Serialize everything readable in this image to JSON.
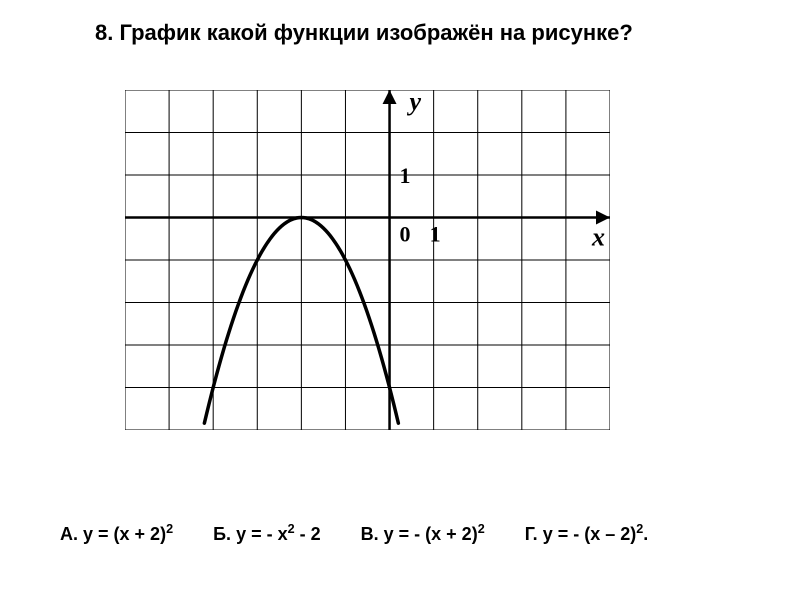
{
  "question": {
    "number": "8.",
    "text": "График какой функции изображён на рисунке?"
  },
  "chart": {
    "type": "line",
    "background_color": "#ffffff",
    "grid_color": "#000000",
    "axis_color": "#000000",
    "curve_color": "#000000",
    "axis_line_width": 2.5,
    "curve_line_width": 3.5,
    "grid_line_width": 1,
    "x_range": [
      -6,
      5
    ],
    "y_range": [
      -5,
      3
    ],
    "grid_step": 1,
    "x_label": "x",
    "y_label": "y",
    "label_fontsize": 26,
    "tick_label_fontsize": 22,
    "origin_label": "0",
    "unit_label": "1",
    "parabola": {
      "vertex": [
        -2,
        0
      ],
      "coefficient": -1,
      "x_min": -4.2,
      "x_max": 0.2
    }
  },
  "answers": {
    "a": {
      "prefix": "А.",
      "formula": "y = (x + 2)",
      "exponent": "2"
    },
    "b": {
      "prefix": "Б.",
      "formula": "y = - x",
      "exponent": "2",
      "suffix": " - 2"
    },
    "v": {
      "prefix": "В.",
      "formula": "y = - (x + 2)",
      "exponent": "2"
    },
    "g": {
      "prefix": "Г.",
      "formula": "y = - (x – 2)",
      "exponent": "2",
      "suffix": "."
    }
  }
}
